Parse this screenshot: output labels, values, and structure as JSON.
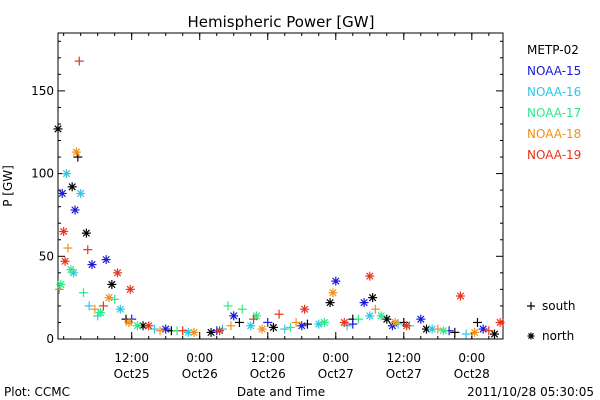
{
  "chart_data": {
    "type": "scatter",
    "title": "Hemispheric Power [GW]",
    "ylabel": "P [GW]",
    "xlabel": "Date and Time",
    "ylim": [
      0,
      185
    ],
    "xlim": [
      "2011-10-24 23:00",
      "2011-10-28 05:30"
    ],
    "y_ticks": [
      0,
      50,
      100,
      150
    ],
    "x_ticks": [
      {
        "time": "2011-10-25 12:00",
        "label_time": "12:00",
        "label_date": "Oct25"
      },
      {
        "time": "2011-10-26 00:00",
        "label_time": "0:00",
        "label_date": "Oct26"
      },
      {
        "time": "2011-10-26 12:00",
        "label_time": "12:00",
        "label_date": "Oct26"
      },
      {
        "time": "2011-10-27 00:00",
        "label_time": "0:00",
        "label_date": "Oct27"
      },
      {
        "time": "2011-10-27 12:00",
        "label_time": "12:00",
        "label_date": "Oct27"
      },
      {
        "time": "2011-10-28 00:00",
        "label_time": "0:00",
        "label_date": "Oct28"
      }
    ],
    "grid": false,
    "legend": {
      "position": "right",
      "markers": [
        {
          "symbol": "+",
          "label": "south"
        },
        {
          "symbol": "*",
          "label": "north"
        }
      ]
    },
    "series": [
      {
        "name": "METP-02",
        "color": "#000000",
        "points": [
          {
            "t": "2011-10-24 23:00",
            "y": 127,
            "h": "north"
          },
          {
            "t": "2011-10-25 01:30",
            "y": 92,
            "h": "north"
          },
          {
            "t": "2011-10-25 02:30",
            "y": 110,
            "h": "south"
          },
          {
            "t": "2011-10-25 04:00",
            "y": 64,
            "h": "north"
          },
          {
            "t": "2011-10-25 08:30",
            "y": 33,
            "h": "north"
          },
          {
            "t": "2011-10-25 11:00",
            "y": 12,
            "h": "south"
          },
          {
            "t": "2011-10-25 14:00",
            "y": 8,
            "h": "north"
          },
          {
            "t": "2011-10-25 19:00",
            "y": 5,
            "h": "south"
          },
          {
            "t": "2011-10-26 02:00",
            "y": 4,
            "h": "north"
          },
          {
            "t": "2011-10-26 07:00",
            "y": 10,
            "h": "south"
          },
          {
            "t": "2011-10-26 13:00",
            "y": 7,
            "h": "north"
          },
          {
            "t": "2011-10-26 19:00",
            "y": 9,
            "h": "south"
          },
          {
            "t": "2011-10-26 23:00",
            "y": 22,
            "h": "north"
          },
          {
            "t": "2011-10-27 03:00",
            "y": 12,
            "h": "south"
          },
          {
            "t": "2011-10-27 06:30",
            "y": 25,
            "h": "north"
          },
          {
            "t": "2011-10-27 09:00",
            "y": 12,
            "h": "north"
          },
          {
            "t": "2011-10-27 12:00",
            "y": 10,
            "h": "south"
          },
          {
            "t": "2011-10-27 16:00",
            "y": 6,
            "h": "north"
          },
          {
            "t": "2011-10-27 21:00",
            "y": 4,
            "h": "south"
          },
          {
            "t": "2011-10-28 01:00",
            "y": 10,
            "h": "south"
          },
          {
            "t": "2011-10-28 04:00",
            "y": 3,
            "h": "north"
          }
        ]
      },
      {
        "name": "NOAA-15",
        "color": "#1a1ad8",
        "points": [
          {
            "t": "2011-10-24 23:45",
            "y": 88,
            "h": "north"
          },
          {
            "t": "2011-10-25 02:00",
            "y": 78,
            "h": "north"
          },
          {
            "t": "2011-10-25 05:00",
            "y": 45,
            "h": "north"
          },
          {
            "t": "2011-10-25 07:30",
            "y": 48,
            "h": "north"
          },
          {
            "t": "2011-10-25 12:00",
            "y": 12,
            "h": "south"
          },
          {
            "t": "2011-10-25 18:00",
            "y": 6,
            "h": "north"
          },
          {
            "t": "2011-10-26 03:00",
            "y": 5,
            "h": "south"
          },
          {
            "t": "2011-10-26 06:00",
            "y": 14,
            "h": "north"
          },
          {
            "t": "2011-10-26 12:00",
            "y": 10,
            "h": "south"
          },
          {
            "t": "2011-10-26 18:00",
            "y": 8,
            "h": "north"
          },
          {
            "t": "2011-10-27 00:00",
            "y": 35,
            "h": "north"
          },
          {
            "t": "2011-10-27 03:00",
            "y": 9,
            "h": "south"
          },
          {
            "t": "2011-10-27 05:00",
            "y": 22,
            "h": "north"
          },
          {
            "t": "2011-10-27 10:00",
            "y": 8,
            "h": "north"
          },
          {
            "t": "2011-10-27 15:00",
            "y": 12,
            "h": "north"
          },
          {
            "t": "2011-10-27 20:00",
            "y": 5,
            "h": "south"
          },
          {
            "t": "2011-10-28 02:00",
            "y": 6,
            "h": "north"
          }
        ]
      },
      {
        "name": "NOAA-16",
        "color": "#2ac8e8",
        "points": [
          {
            "t": "2011-10-25 00:30",
            "y": 100,
            "h": "north"
          },
          {
            "t": "2011-10-25 01:45",
            "y": 40,
            "h": "north"
          },
          {
            "t": "2011-10-25 03:00",
            "y": 88,
            "h": "north"
          },
          {
            "t": "2011-10-25 04:30",
            "y": 20,
            "h": "south"
          },
          {
            "t": "2011-10-25 06:00",
            "y": 14,
            "h": "south"
          },
          {
            "t": "2011-10-25 10:00",
            "y": 18,
            "h": "north"
          },
          {
            "t": "2011-10-25 16:00",
            "y": 6,
            "h": "south"
          },
          {
            "t": "2011-10-25 22:00",
            "y": 4,
            "h": "north"
          },
          {
            "t": "2011-10-26 04:00",
            "y": 6,
            "h": "south"
          },
          {
            "t": "2011-10-26 09:00",
            "y": 8,
            "h": "north"
          },
          {
            "t": "2011-10-26 15:00",
            "y": 6,
            "h": "south"
          },
          {
            "t": "2011-10-26 21:00",
            "y": 9,
            "h": "north"
          },
          {
            "t": "2011-10-27 02:00",
            "y": 8,
            "h": "south"
          },
          {
            "t": "2011-10-27 06:00",
            "y": 14,
            "h": "north"
          },
          {
            "t": "2011-10-27 11:00",
            "y": 9,
            "h": "south"
          },
          {
            "t": "2011-10-27 17:00",
            "y": 6,
            "h": "north"
          },
          {
            "t": "2011-10-27 23:00",
            "y": 3,
            "h": "south"
          }
        ]
      },
      {
        "name": "NOAA-17",
        "color": "#2ee88a",
        "points": [
          {
            "t": "2011-10-24 23:30",
            "y": 33,
            "h": "north"
          },
          {
            "t": "2011-10-25 01:15",
            "y": 42,
            "h": "north"
          },
          {
            "t": "2011-10-25 03:30",
            "y": 28,
            "h": "south"
          },
          {
            "t": "2011-10-25 06:30",
            "y": 16,
            "h": "north"
          },
          {
            "t": "2011-10-25 09:00",
            "y": 24,
            "h": "south"
          },
          {
            "t": "2011-10-25 13:00",
            "y": 8,
            "h": "north"
          },
          {
            "t": "2011-10-25 20:00",
            "y": 5,
            "h": "south"
          },
          {
            "t": "2011-10-26 05:00",
            "y": 20,
            "h": "south"
          },
          {
            "t": "2011-10-26 07:30",
            "y": 18,
            "h": "south"
          },
          {
            "t": "2011-10-26 10:00",
            "y": 14,
            "h": "north"
          },
          {
            "t": "2011-10-26 16:00",
            "y": 7,
            "h": "south"
          },
          {
            "t": "2011-10-26 22:00",
            "y": 10,
            "h": "north"
          },
          {
            "t": "2011-10-27 04:00",
            "y": 12,
            "h": "south"
          },
          {
            "t": "2011-10-27 08:00",
            "y": 14,
            "h": "north"
          },
          {
            "t": "2011-10-27 13:00",
            "y": 8,
            "h": "south"
          },
          {
            "t": "2011-10-27 19:00",
            "y": 5,
            "h": "north"
          }
        ]
      },
      {
        "name": "NOAA-18",
        "color": "#f0901a",
        "points": [
          {
            "t": "2011-10-24 23:15",
            "y": 30,
            "h": "south"
          },
          {
            "t": "2011-10-25 00:45",
            "y": 55,
            "h": "south"
          },
          {
            "t": "2011-10-25 02:15",
            "y": 113,
            "h": "north"
          },
          {
            "t": "2011-10-25 05:30",
            "y": 18,
            "h": "south"
          },
          {
            "t": "2011-10-25 08:00",
            "y": 25,
            "h": "north"
          },
          {
            "t": "2011-10-25 11:30",
            "y": 10,
            "h": "north"
          },
          {
            "t": "2011-10-25 17:00",
            "y": 5,
            "h": "south"
          },
          {
            "t": "2011-10-25 23:00",
            "y": 4,
            "h": "north"
          },
          {
            "t": "2011-10-26 05:30",
            "y": 8,
            "h": "south"
          },
          {
            "t": "2011-10-26 11:00",
            "y": 6,
            "h": "north"
          },
          {
            "t": "2011-10-26 17:00",
            "y": 10,
            "h": "south"
          },
          {
            "t": "2011-10-26 23:30",
            "y": 28,
            "h": "north"
          },
          {
            "t": "2011-10-27 07:00",
            "y": 18,
            "h": "south"
          },
          {
            "t": "2011-10-27 10:30",
            "y": 10,
            "h": "north"
          },
          {
            "t": "2011-10-27 18:00",
            "y": 6,
            "h": "south"
          },
          {
            "t": "2011-10-28 00:30",
            "y": 4,
            "h": "north"
          }
        ]
      },
      {
        "name": "NOAA-19",
        "color": "#e8321a",
        "points": [
          {
            "t": "2011-10-25 00:00",
            "y": 65,
            "h": "north"
          },
          {
            "t": "2011-10-25 00:15",
            "y": 47,
            "h": "north"
          },
          {
            "t": "2011-10-25 02:45",
            "y": 168,
            "h": "south"
          },
          {
            "t": "2011-10-25 04:15",
            "y": 54,
            "h": "south"
          },
          {
            "t": "2011-10-25 07:00",
            "y": 20,
            "h": "south"
          },
          {
            "t": "2011-10-25 09:30",
            "y": 40,
            "h": "north"
          },
          {
            "t": "2011-10-25 11:45",
            "y": 30,
            "h": "north"
          },
          {
            "t": "2011-10-25 15:00",
            "y": 8,
            "h": "north"
          },
          {
            "t": "2011-10-25 21:00",
            "y": 5,
            "h": "south"
          },
          {
            "t": "2011-10-26 03:30",
            "y": 5,
            "h": "north"
          },
          {
            "t": "2011-10-26 09:30",
            "y": 12,
            "h": "south"
          },
          {
            "t": "2011-10-26 14:00",
            "y": 15,
            "h": "south"
          },
          {
            "t": "2011-10-26 18:30",
            "y": 18,
            "h": "north"
          },
          {
            "t": "2011-10-27 01:30",
            "y": 10,
            "h": "north"
          },
          {
            "t": "2011-10-27 06:00",
            "y": 38,
            "h": "north"
          },
          {
            "t": "2011-10-27 12:30",
            "y": 8,
            "h": "north"
          },
          {
            "t": "2011-10-27 22:00",
            "y": 26,
            "h": "north"
          },
          {
            "t": "2011-10-28 03:00",
            "y": 5,
            "h": "south"
          },
          {
            "t": "2011-10-28 05:00",
            "y": 10,
            "h": "north"
          }
        ]
      }
    ]
  },
  "footer": {
    "left": "Plot: CCMC",
    "right": "2011/10/28 05:30:05"
  }
}
